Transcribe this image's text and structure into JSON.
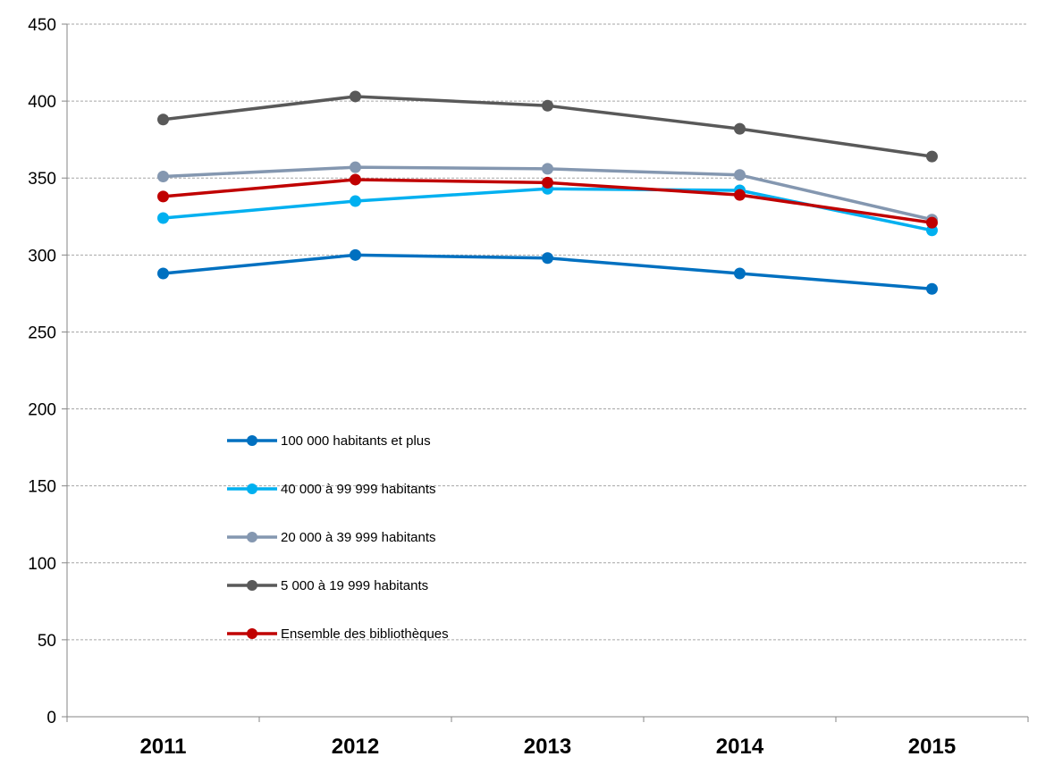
{
  "chart_data": {
    "type": "line",
    "categories": [
      "2011",
      "2012",
      "2013",
      "2014",
      "2015"
    ],
    "ylim": [
      0,
      450
    ],
    "yticks": [
      "0",
      "50",
      "100",
      "150",
      "200",
      "250",
      "300",
      "350",
      "400",
      "450"
    ],
    "grid": true,
    "legend_position": "center-left",
    "series": [
      {
        "name": "100 000 habitants et plus",
        "color": "#0070C0",
        "values": [
          288,
          300,
          298,
          288,
          278
        ]
      },
      {
        "name": "40 000 à 99 999 habitants",
        "color": "#00B0F0",
        "values": [
          324,
          335,
          343,
          342,
          316
        ]
      },
      {
        "name": "20 000 à 39 999 habitants",
        "color": "#8497B0",
        "values": [
          351,
          357,
          356,
          352,
          323
        ]
      },
      {
        "name": "5 000 à 19 999 habitants",
        "color": "#595959",
        "values": [
          388,
          403,
          397,
          382,
          364
        ]
      },
      {
        "name": "Ensemble des bibliothèques",
        "color": "#C00000",
        "values": [
          338,
          349,
          347,
          339,
          321
        ]
      }
    ]
  }
}
